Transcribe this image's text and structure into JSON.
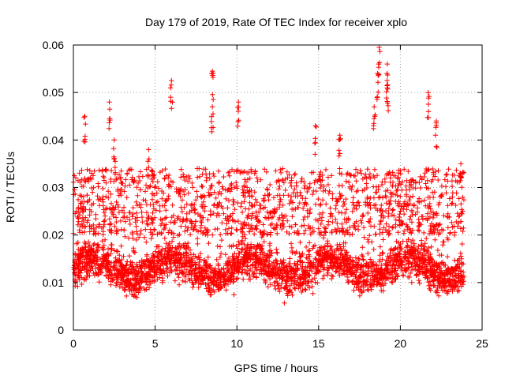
{
  "chart_data": {
    "type": "scatter",
    "title": "Day 179 of 2019, Rate Of TEC Index for receiver xplo",
    "xlabel": "GPS time / hours",
    "ylabel": "ROTI / TECUs",
    "xlim": [
      0,
      25
    ],
    "ylim": [
      0,
      0.06
    ],
    "x_ticks": [
      0,
      5,
      10,
      15,
      20,
      25
    ],
    "x_tick_labels": [
      "0",
      "5",
      "10",
      "15",
      "20",
      "25"
    ],
    "y_ticks": [
      0,
      0.01,
      0.02,
      0.03,
      0.04,
      0.05,
      0.06
    ],
    "y_tick_labels": [
      "0",
      "0.01",
      "0.02",
      "0.03",
      "0.04",
      "0.05",
      "0.06"
    ],
    "grid": true,
    "marker": "+",
    "marker_color": "#ff0000",
    "series": [
      {
        "name": "ROTI",
        "data_range_hours": [
          0,
          23.9
        ],
        "typical_min": 0.005,
        "typical_max": 0.028,
        "baseline": 0.013,
        "peaks": [
          {
            "x": 0.7,
            "y": 0.045
          },
          {
            "x": 2.2,
            "y": 0.048
          },
          {
            "x": 2.5,
            "y": 0.04
          },
          {
            "x": 4.6,
            "y": 0.038
          },
          {
            "x": 6.0,
            "y": 0.0525
          },
          {
            "x": 8.5,
            "y": 0.0545
          },
          {
            "x": 8.5,
            "y": 0.047
          },
          {
            "x": 10.1,
            "y": 0.048
          },
          {
            "x": 14.8,
            "y": 0.043
          },
          {
            "x": 16.3,
            "y": 0.041
          },
          {
            "x": 18.4,
            "y": 0.047
          },
          {
            "x": 18.7,
            "y": 0.0595
          },
          {
            "x": 18.6,
            "y": 0.054
          },
          {
            "x": 19.2,
            "y": 0.056
          },
          {
            "x": 19.2,
            "y": 0.051
          },
          {
            "x": 21.7,
            "y": 0.05
          },
          {
            "x": 22.2,
            "y": 0.044
          },
          {
            "x": 23.7,
            "y": 0.035
          }
        ]
      }
    ]
  }
}
